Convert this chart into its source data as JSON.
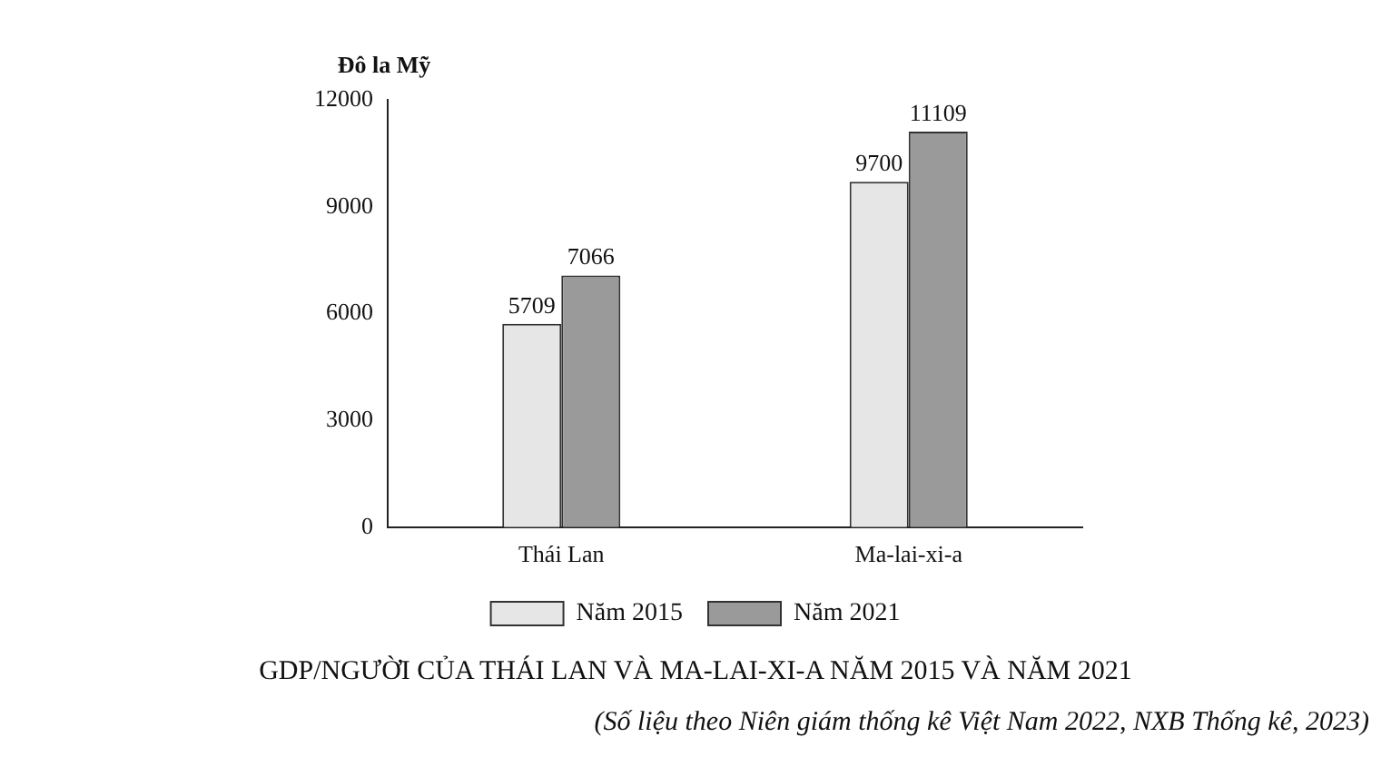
{
  "chart_data": {
    "type": "bar",
    "title": "GDP/NGƯỜI CỦA THÁI LAN VÀ MA-LAI-XI-A NĂM 2015 VÀ NĂM 2021",
    "ylabel": "Đô la Mỹ",
    "annotations": [
      "(Số liệu theo Niên giám thống kê Việt Nam 2022, NXB Thống kê, 2023)"
    ],
    "categories": [
      "Thái Lan",
      "Ma-lai-xi-a"
    ],
    "series": [
      {
        "name": "Năm 2015",
        "color": "#e6e6e6",
        "values": [
          5709,
          9700
        ]
      },
      {
        "name": "Năm 2021",
        "color": "#9a9a9a",
        "values": [
          7066,
          11109
        ]
      }
    ],
    "ylim": [
      0,
      12000
    ],
    "yticks": [
      0,
      3000,
      6000,
      9000,
      12000
    ],
    "grid": false,
    "legend": "bottom",
    "data_labels": true
  }
}
